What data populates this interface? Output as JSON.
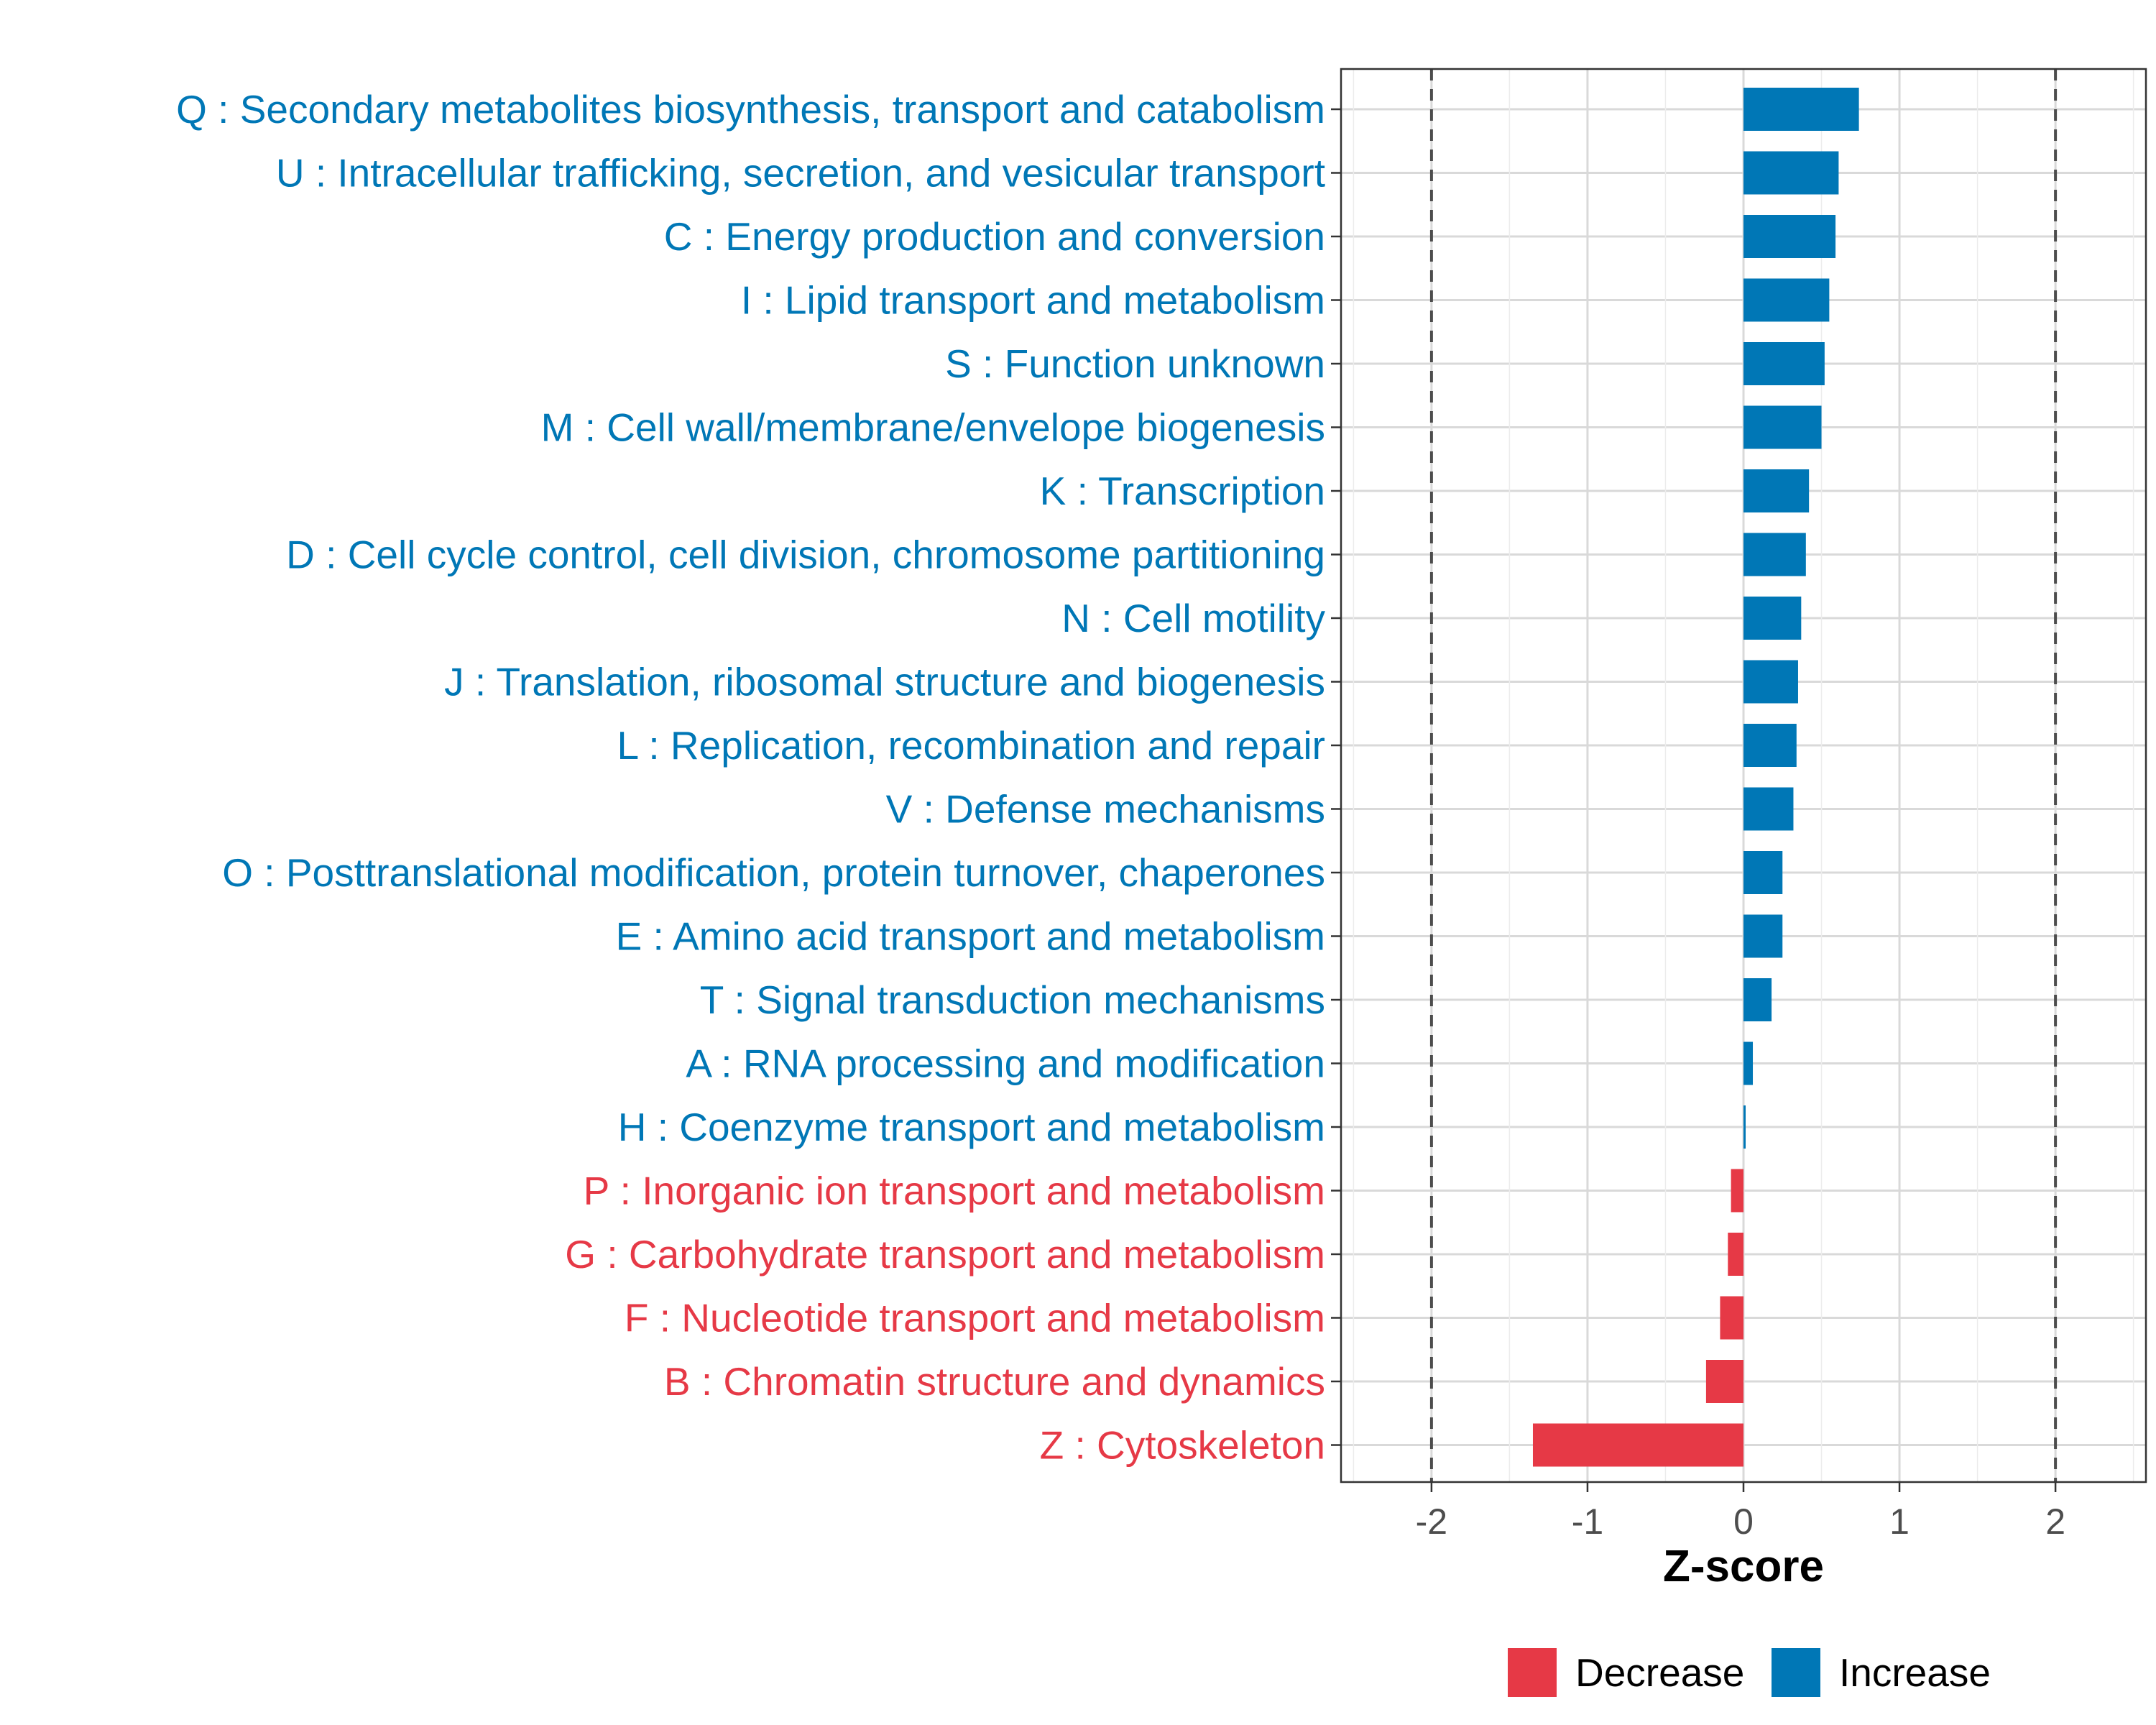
{
  "chart_data": {
    "type": "bar",
    "orientation": "horizontal",
    "title": "",
    "xlabel": "Z-score",
    "ylabel": "",
    "xlim": [
      -2.58,
      2.58
    ],
    "x_ticks": [
      -2,
      -1,
      0,
      1,
      2
    ],
    "x_tick_labels": [
      "-2",
      "-1",
      "0",
      "1",
      "2"
    ],
    "reference_lines": [
      -2,
      2
    ],
    "grid": true,
    "legend_position": "bottom",
    "colors": {
      "Decrease": "#e63946",
      "Increase": "#0077b6"
    },
    "legend": [
      {
        "name": "Decrease",
        "color": "#e63946"
      },
      {
        "name": "Increase",
        "color": "#0077b6"
      }
    ],
    "categories": [
      {
        "label": "Q : Secondary metabolites biosynthesis, transport and catabolism",
        "value": 0.74,
        "direction": "Increase"
      },
      {
        "label": "U : Intracellular trafficking, secretion, and vesicular transport",
        "value": 0.61,
        "direction": "Increase"
      },
      {
        "label": "C : Energy production and conversion",
        "value": 0.59,
        "direction": "Increase"
      },
      {
        "label": "I : Lipid transport and metabolism",
        "value": 0.55,
        "direction": "Increase"
      },
      {
        "label": "S : Function unknown",
        "value": 0.52,
        "direction": "Increase"
      },
      {
        "label": "M : Cell wall/membrane/envelope biogenesis",
        "value": 0.5,
        "direction": "Increase"
      },
      {
        "label": "K : Transcription",
        "value": 0.42,
        "direction": "Increase"
      },
      {
        "label": "D : Cell cycle control, cell division, chromosome partitioning",
        "value": 0.4,
        "direction": "Increase"
      },
      {
        "label": "N : Cell motility",
        "value": 0.37,
        "direction": "Increase"
      },
      {
        "label": "J : Translation, ribosomal structure and biogenesis",
        "value": 0.35,
        "direction": "Increase"
      },
      {
        "label": "L : Replication, recombination and repair",
        "value": 0.34,
        "direction": "Increase"
      },
      {
        "label": "V : Defense mechanisms",
        "value": 0.32,
        "direction": "Increase"
      },
      {
        "label": "O : Posttranslational modification, protein turnover, chaperones",
        "value": 0.25,
        "direction": "Increase"
      },
      {
        "label": "E : Amino acid transport and metabolism",
        "value": 0.25,
        "direction": "Increase"
      },
      {
        "label": "T : Signal transduction mechanisms",
        "value": 0.18,
        "direction": "Increase"
      },
      {
        "label": "A : RNA processing and modification",
        "value": 0.06,
        "direction": "Increase"
      },
      {
        "label": "H : Coenzyme transport and metabolism",
        "value": 0.01,
        "direction": "Increase"
      },
      {
        "label": "P : Inorganic ion transport and metabolism",
        "value": -0.08,
        "direction": "Decrease"
      },
      {
        "label": "G : Carbohydrate transport and metabolism",
        "value": -0.1,
        "direction": "Decrease"
      },
      {
        "label": "F : Nucleotide transport and metabolism",
        "value": -0.15,
        "direction": "Decrease"
      },
      {
        "label": "B : Chromatin structure and dynamics",
        "value": -0.24,
        "direction": "Decrease"
      },
      {
        "label": "Z : Cytoskeleton",
        "value": -1.35,
        "direction": "Decrease"
      }
    ]
  }
}
